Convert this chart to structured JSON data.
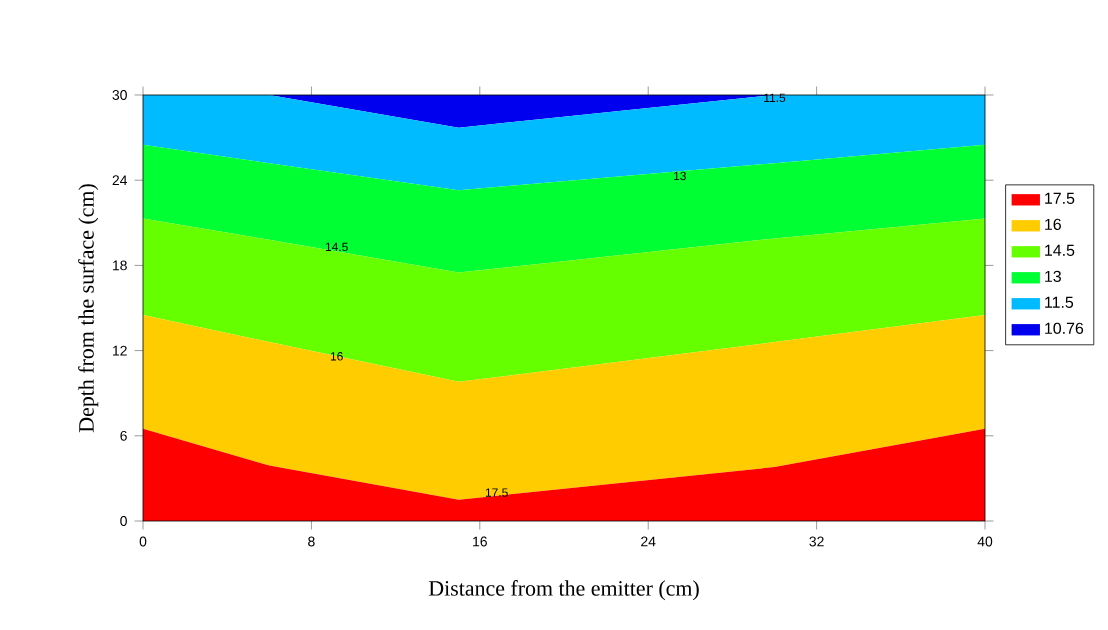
{
  "chart_data": {
    "type": "area",
    "stacked": true,
    "xlabel": "Distance from the emitter (cm)",
    "ylabel": "Depth from the surface (cm)",
    "x": [
      0,
      6,
      15,
      30,
      40
    ],
    "series": [
      {
        "name": "17.5",
        "color": "#ff0000",
        "values": [
          6.5,
          3.9,
          1.5,
          3.8,
          6.5
        ]
      },
      {
        "name": "16",
        "color": "#ffcc00",
        "values": [
          8.0,
          8.7,
          8.3,
          8.8,
          8.0
        ]
      },
      {
        "name": "14.5",
        "color": "#66ff00",
        "values": [
          6.8,
          7.2,
          7.7,
          7.3,
          6.8
        ]
      },
      {
        "name": "13",
        "color": "#00ff33",
        "values": [
          5.2,
          5.4,
          5.8,
          5.3,
          5.2
        ]
      },
      {
        "name": "11.5",
        "color": "#00bbff",
        "values": [
          3.5,
          4.8,
          4.4,
          4.8,
          3.5
        ]
      },
      {
        "name": "10.76",
        "color": "#0000ee",
        "values": [
          0,
          0,
          2.3,
          0,
          0
        ]
      }
    ],
    "xlim": [
      0,
      40
    ],
    "ylim": [
      0,
      30
    ],
    "xticks": [
      0,
      8,
      16,
      24,
      32,
      40
    ],
    "yticks": [
      0,
      6,
      12,
      18,
      24,
      30
    ],
    "legend": "right",
    "annotations": [
      {
        "text": "17.5",
        "x": 16.8,
        "y": 2
      },
      {
        "text": "16",
        "x": 9.2,
        "y": 11.6
      },
      {
        "text": "14.5",
        "x": 9.2,
        "y": 19.3
      },
      {
        "text": "13",
        "x": 25.5,
        "y": 24.3
      },
      {
        "text": "11.5",
        "x": 30,
        "y": 29.8
      }
    ]
  }
}
